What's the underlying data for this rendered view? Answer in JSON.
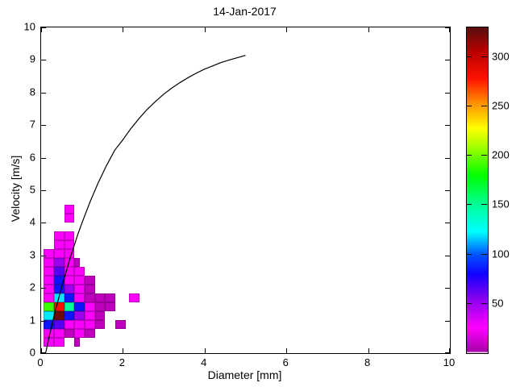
{
  "title": "14-Jan-2017",
  "axes": {
    "x": {
      "label": "Diameter [mm]",
      "min": 0,
      "max": 10,
      "ticks": [
        0,
        2,
        4,
        6,
        8,
        10
      ]
    },
    "y": {
      "label": "Velocity [m/s]",
      "min": 0,
      "max": 10,
      "ticks": [
        0,
        1,
        2,
        3,
        4,
        5,
        6,
        7,
        8,
        9,
        10
      ]
    }
  },
  "colorbar": {
    "vmin": 0,
    "vmax": 330,
    "ticks": [
      50,
      100,
      150,
      200,
      250,
      300
    ],
    "stops": [
      [
        0,
        "#ffffff"
      ],
      [
        2,
        "#a800a8"
      ],
      [
        26,
        "#ff00ff"
      ],
      [
        55,
        "#8800ee"
      ],
      [
        80,
        "#1100ff"
      ],
      [
        100,
        "#0055ff"
      ],
      [
        123,
        "#00ffff"
      ],
      [
        150,
        "#00ff99"
      ],
      [
        180,
        "#00ff00"
      ],
      [
        210,
        "#aaff00"
      ],
      [
        228,
        "#ffff00"
      ],
      [
        255,
        "#ff8800"
      ],
      [
        278,
        "#ff1100"
      ],
      [
        305,
        "#bb0000"
      ],
      [
        330,
        "#5a0e0e"
      ]
    ]
  },
  "chart_data": {
    "type": "heatmap",
    "title": "14-Jan-2017",
    "xlabel": "Diameter [mm]",
    "ylabel": "Velocity [m/s]",
    "xlim": [
      0,
      10
    ],
    "ylim": [
      0,
      10
    ],
    "grid": false,
    "legend": "colorbar-right",
    "curve": {
      "description": "black terminal-fall-velocity reference curve",
      "color": "#000000",
      "points": [
        [
          0.11,
          0.0
        ],
        [
          0.2,
          0.52
        ],
        [
          0.3,
          1.05
        ],
        [
          0.4,
          1.55
        ],
        [
          0.5,
          2.02
        ],
        [
          0.6,
          2.44
        ],
        [
          0.7,
          2.88
        ],
        [
          0.8,
          3.27
        ],
        [
          0.9,
          3.65
        ],
        [
          1.0,
          4.0
        ],
        [
          1.2,
          4.65
        ],
        [
          1.4,
          5.24
        ],
        [
          1.6,
          5.76
        ],
        [
          1.8,
          6.23
        ],
        [
          2.0,
          6.55
        ],
        [
          2.2,
          6.9
        ],
        [
          2.4,
          7.21
        ],
        [
          2.6,
          7.49
        ],
        [
          2.8,
          7.73
        ],
        [
          3.0,
          7.95
        ],
        [
          3.2,
          8.14
        ],
        [
          3.4,
          8.31
        ],
        [
          3.6,
          8.46
        ],
        [
          3.8,
          8.6
        ],
        [
          4.0,
          8.72
        ],
        [
          4.2,
          8.82
        ],
        [
          4.4,
          8.92
        ],
        [
          4.6,
          9.0
        ],
        [
          4.8,
          9.07
        ],
        [
          5.0,
          9.14
        ]
      ]
    },
    "cells_format": [
      "x0_mm",
      "x1_mm",
      "y0_ms",
      "y1_ms",
      "count"
    ],
    "cells": [
      [
        0.5625,
        0.8125,
        4.2825,
        4.555,
        25
      ],
      [
        0.5625,
        0.8125,
        4.01,
        4.2825,
        25
      ],
      [
        0.3125,
        0.5625,
        3.465,
        3.7375,
        25
      ],
      [
        0.5625,
        0.8125,
        3.465,
        3.7375,
        25
      ],
      [
        0.3125,
        0.5625,
        3.1925,
        3.465,
        25
      ],
      [
        0.5625,
        0.8125,
        3.1925,
        3.465,
        25
      ],
      [
        0.0625,
        0.3125,
        2.92,
        3.1925,
        25
      ],
      [
        0.3125,
        0.5625,
        2.92,
        3.1925,
        25
      ],
      [
        0.5625,
        0.8125,
        2.92,
        3.1925,
        25
      ],
      [
        0.0625,
        0.3125,
        2.6475,
        2.92,
        25
      ],
      [
        0.3125,
        0.5625,
        2.6475,
        2.92,
        50
      ],
      [
        0.5625,
        0.8125,
        2.6475,
        2.92,
        25
      ],
      [
        0.8125,
        0.9375,
        2.6475,
        2.92,
        8
      ],
      [
        0.0625,
        0.3125,
        2.375,
        2.6475,
        25
      ],
      [
        0.3125,
        0.5625,
        2.375,
        2.6475,
        65
      ],
      [
        0.5625,
        0.8125,
        2.375,
        2.6475,
        25
      ],
      [
        0.8125,
        1.0625,
        2.375,
        2.6475,
        25
      ],
      [
        0.0625,
        0.3125,
        2.1025,
        2.375,
        25
      ],
      [
        0.3125,
        0.5625,
        2.1025,
        2.375,
        85
      ],
      [
        0.5625,
        0.8125,
        2.1025,
        2.375,
        25
      ],
      [
        0.8125,
        1.0625,
        2.1025,
        2.375,
        25
      ],
      [
        1.0625,
        1.3125,
        2.1025,
        2.375,
        8
      ],
      [
        0.0625,
        0.3125,
        1.83,
        2.1025,
        25
      ],
      [
        0.3125,
        0.5625,
        1.83,
        2.1025,
        85
      ],
      [
        0.5625,
        0.8125,
        1.83,
        2.1025,
        50
      ],
      [
        0.8125,
        1.0625,
        1.83,
        2.1025,
        25
      ],
      [
        1.0625,
        1.3125,
        1.83,
        2.1025,
        8
      ],
      [
        0.0625,
        0.3125,
        1.5575,
        1.83,
        25
      ],
      [
        0.3125,
        0.5625,
        1.5575,
        1.83,
        120
      ],
      [
        0.5625,
        0.8125,
        1.5575,
        1.83,
        85
      ],
      [
        0.8125,
        1.0625,
        1.5575,
        1.83,
        25
      ],
      [
        1.0625,
        1.3125,
        1.5575,
        1.83,
        8
      ],
      [
        1.3125,
        1.5625,
        1.5575,
        1.83,
        8
      ],
      [
        1.5625,
        1.8125,
        1.5575,
        1.83,
        8
      ],
      [
        2.15,
        2.4,
        1.5575,
        1.83,
        25
      ],
      [
        0.0625,
        0.3125,
        1.285,
        1.5575,
        190
      ],
      [
        0.3125,
        0.5625,
        1.285,
        1.5575,
        280
      ],
      [
        0.5625,
        0.8125,
        1.285,
        1.5575,
        150
      ],
      [
        0.8125,
        1.0625,
        1.285,
        1.5575,
        85
      ],
      [
        1.0625,
        1.3125,
        1.285,
        1.5575,
        25
      ],
      [
        1.3125,
        1.5625,
        1.285,
        1.5575,
        8
      ],
      [
        1.5625,
        1.8125,
        1.285,
        1.5575,
        8
      ],
      [
        0.0625,
        0.3125,
        1.0125,
        1.285,
        120
      ],
      [
        0.3125,
        0.5625,
        1.0125,
        1.285,
        325
      ],
      [
        0.5625,
        0.8125,
        1.0125,
        1.285,
        85
      ],
      [
        0.8125,
        1.0625,
        1.0125,
        1.285,
        50
      ],
      [
        1.0625,
        1.3125,
        1.0125,
        1.285,
        25
      ],
      [
        1.3125,
        1.5625,
        1.0125,
        1.285,
        8
      ],
      [
        0.0625,
        0.3125,
        0.74,
        1.0125,
        85
      ],
      [
        0.3125,
        0.5625,
        0.74,
        1.0125,
        65
      ],
      [
        0.5625,
        0.8125,
        0.74,
        1.0125,
        25
      ],
      [
        0.8125,
        1.0625,
        0.74,
        1.0125,
        25
      ],
      [
        1.0625,
        1.3125,
        0.74,
        1.0125,
        25
      ],
      [
        1.3125,
        1.5625,
        0.74,
        1.0125,
        8
      ],
      [
        1.8125,
        2.0625,
        0.74,
        1.0125,
        8
      ],
      [
        0.0625,
        0.3125,
        0.4675,
        0.74,
        25
      ],
      [
        0.3125,
        0.5625,
        0.4675,
        0.74,
        25
      ],
      [
        0.5625,
        0.8125,
        0.4675,
        0.74,
        8
      ],
      [
        0.8125,
        1.0625,
        0.4675,
        0.74,
        25
      ],
      [
        1.0625,
        1.3125,
        0.4675,
        0.74,
        8
      ],
      [
        0.0625,
        0.3125,
        0.195,
        0.4675,
        25
      ],
      [
        0.3125,
        0.5625,
        0.195,
        0.4675,
        25
      ],
      [
        0.8125,
        0.9375,
        0.195,
        0.4675,
        8
      ]
    ]
  }
}
